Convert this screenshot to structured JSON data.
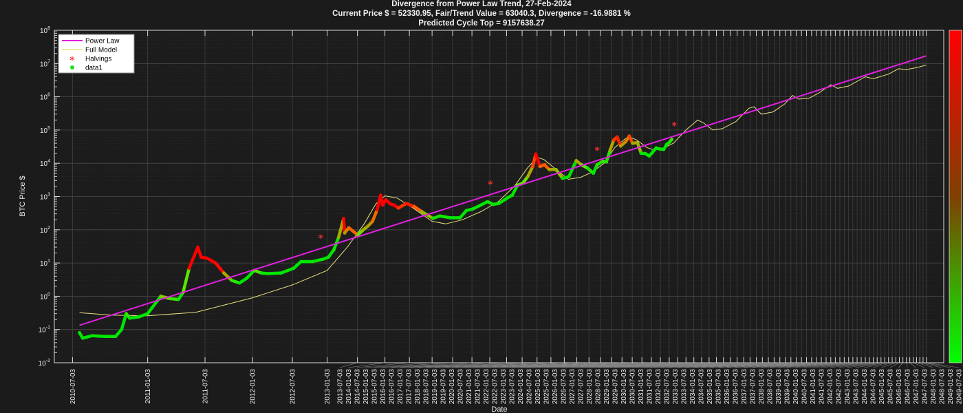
{
  "chart_data": {
    "type": "scatter",
    "title": "Divergence from Power Law Trend, 27-Feb-2024",
    "subtitle": "Current Price $ = 52330.95, Fair/Trend Value = 63040.3, Divergence = -16.9881 %",
    "subtitle2": "Predicted Cycle Top = 9157638.27",
    "xlabel": "Date",
    "ylabel": "BTC Price $",
    "x_scale": "log (days since 2009-01-03)",
    "y_scale": "log",
    "ylim": [
      0.01,
      100000000
    ],
    "xlim": [
      "2010-05-27",
      "2052-05-01"
    ],
    "grid": true,
    "legend_position": "top-left",
    "colorbar": {
      "top_color": "#ff0000",
      "bottom_color": "#00ff00"
    },
    "y_ticks": [
      {
        "base": "10",
        "exp": "-2"
      },
      {
        "base": "10",
        "exp": "-1"
      },
      {
        "base": "10",
        "exp": "0"
      },
      {
        "base": "10",
        "exp": "1"
      },
      {
        "base": "10",
        "exp": "2"
      },
      {
        "base": "10",
        "exp": "3"
      },
      {
        "base": "10",
        "exp": "4"
      },
      {
        "base": "10",
        "exp": "5"
      },
      {
        "base": "10",
        "exp": "6"
      },
      {
        "base": "10",
        "exp": "7"
      },
      {
        "base": "10",
        "exp": "8"
      }
    ],
    "x_ticks": [
      "2010-07-03",
      "2011-01-03",
      "2011-07-03",
      "2012-01-03",
      "2012-07-03",
      "2013-01-03",
      "2013-07-03",
      "2014-01-03",
      "2014-07-03",
      "2015-01-03",
      "2015-07-03",
      "2016-01-03",
      "2016-07-03",
      "2017-01-03",
      "2017-07-03",
      "2018-01-03",
      "2018-07-03",
      "2019-01-03",
      "2019-07-03",
      "2020-01-03",
      "2020-07-03",
      "2021-01-03",
      "2021-07-03",
      "2022-01-03",
      "2022-07-03",
      "2023-01-03",
      "2023-07-03",
      "2024-01-03",
      "2024-07-03",
      "2025-01-03",
      "2025-07-03",
      "2026-01-03",
      "2026-07-03",
      "2027-01-03",
      "2027-07-03",
      "2028-01-03",
      "2028-07-03",
      "2029-01-03",
      "2029-07-03",
      "2030-01-03",
      "2030-07-03",
      "2031-01-03",
      "2031-07-03",
      "2032-01-03",
      "2032-07-03",
      "2033-01-03",
      "2033-07-03",
      "2034-01-03",
      "2034-07-03",
      "2035-01-03",
      "2035-07-03",
      "2036-01-03",
      "2036-07-03",
      "2037-01-03",
      "2037-07-03",
      "2038-01-03",
      "2038-07-03",
      "2039-01-03",
      "2039-07-03",
      "2040-01-03",
      "2040-07-03",
      "2041-01-03",
      "2041-07-03",
      "2042-01-03",
      "2042-07-03",
      "2043-01-03",
      "2043-07-03",
      "2044-01-03",
      "2044-07-03",
      "2045-01-03",
      "2045-07-03",
      "2046-01-03",
      "2046-07-03",
      "2047-01-03",
      "2047-07-03",
      "2048-01-03",
      "2048-07-03",
      "2049-01-03",
      "2049-07-03"
    ],
    "legend": [
      {
        "label": "Power Law",
        "color": "#e020e0",
        "marker": "line"
      },
      {
        "label": "Full Model",
        "color": "#e8e080",
        "marker": "line"
      },
      {
        "label": "Halvings",
        "color": "#ff3030",
        "marker": "asterisk"
      },
      {
        "label": "data1",
        "color": "#20e020",
        "marker": "dot"
      }
    ],
    "series": [
      {
        "name": "Power Law",
        "type": "line",
        "color": "#e020e0",
        "points": [
          [
            "2010-07-18",
            0.134
          ],
          [
            "2049-07-03",
            17000000
          ]
        ]
      },
      {
        "name": "Full Model",
        "type": "line",
        "color": "#e8e080",
        "points": [
          [
            "2010-07-18",
            0.32
          ],
          [
            "2010-10-01",
            0.27
          ],
          [
            "2011-01-03",
            0.26
          ],
          [
            "2011-06-01",
            0.33
          ],
          [
            "2012-01-03",
            0.9
          ],
          [
            "2012-07-03",
            2.2
          ],
          [
            "2013-01-03",
            6
          ],
          [
            "2013-05-01",
            30
          ],
          [
            "2013-08-15",
            150
          ],
          [
            "2013-11-01",
            600
          ],
          [
            "2014-01-03",
            1050
          ],
          [
            "2014-04-01",
            900
          ],
          [
            "2014-08-01",
            450
          ],
          [
            "2015-01-03",
            180
          ],
          [
            "2015-05-01",
            150
          ],
          [
            "2015-10-01",
            200
          ],
          [
            "2016-04-01",
            350
          ],
          [
            "2016-10-01",
            700
          ],
          [
            "2017-04-01",
            2000
          ],
          [
            "2017-09-01",
            7000
          ],
          [
            "2018-01-03",
            15000
          ],
          [
            "2018-04-01",
            13000
          ],
          [
            "2018-10-01",
            6000
          ],
          [
            "2019-03-01",
            3300
          ],
          [
            "2019-09-01",
            3800
          ],
          [
            "2020-03-01",
            5500
          ],
          [
            "2020-09-01",
            10000
          ],
          [
            "2021-03-01",
            30000
          ],
          [
            "2021-09-01",
            55000
          ],
          [
            "2021-12-01",
            60000
          ],
          [
            "2022-04-01",
            50000
          ],
          [
            "2022-10-01",
            30000
          ],
          [
            "2023-03-01",
            25000
          ],
          [
            "2023-10-01",
            30000
          ],
          [
            "2024-04-01",
            40000
          ],
          [
            "2025-01-03",
            100000
          ],
          [
            "2025-10-01",
            200000
          ],
          [
            "2026-03-01",
            160000
          ],
          [
            "2026-10-01",
            100000
          ],
          [
            "2027-06-01",
            110000
          ],
          [
            "2028-06-01",
            180000
          ],
          [
            "2029-06-01",
            450000
          ],
          [
            "2029-11-01",
            500000
          ],
          [
            "2030-06-01",
            300000
          ],
          [
            "2031-06-01",
            350000
          ],
          [
            "2032-06-01",
            600000
          ],
          [
            "2033-03-01",
            1100000
          ],
          [
            "2033-10-01",
            850000
          ],
          [
            "2034-10-01",
            900000
          ],
          [
            "2035-10-01",
            1300000
          ],
          [
            "2037-01-03",
            2300000
          ],
          [
            "2037-10-01",
            1800000
          ],
          [
            "2039-01-03",
            2100000
          ],
          [
            "2041-01-03",
            4000000
          ],
          [
            "2042-01-03",
            3500000
          ],
          [
            "2044-01-03",
            4800000
          ],
          [
            "2045-06-01",
            7000000
          ],
          [
            "2046-06-01",
            6500000
          ],
          [
            "2048-01-03",
            7500000
          ],
          [
            "2049-07-03",
            9000000
          ]
        ]
      },
      {
        "name": "Halvings",
        "type": "scatter",
        "color": "#ff3030",
        "points": [
          [
            "2012-11-28",
            62
          ],
          [
            "2016-07-09",
            2600
          ],
          [
            "2020-05-11",
            27000
          ],
          [
            "2024-04-20",
            150000
          ]
        ]
      },
      {
        "name": "data1",
        "type": "scatter",
        "color_by": "divergence",
        "points": [
          [
            "2010-07-18",
            0.08
          ],
          [
            "2010-07-25",
            0.055
          ],
          [
            "2010-08-15",
            0.065
          ],
          [
            "2010-09-15",
            0.062
          ],
          [
            "2010-10-10",
            0.062
          ],
          [
            "2010-10-25",
            0.1
          ],
          [
            "2010-11-06",
            0.3
          ],
          [
            "2010-11-15",
            0.22
          ],
          [
            "2010-12-10",
            0.24
          ],
          [
            "2011-01-03",
            0.3
          ],
          [
            "2011-02-10",
            1.0
          ],
          [
            "2011-03-10",
            0.85
          ],
          [
            "2011-04-05",
            0.8
          ],
          [
            "2011-04-20",
            1.3
          ],
          [
            "2011-05-10",
            7
          ],
          [
            "2011-06-08",
            30
          ],
          [
            "2011-06-20",
            15
          ],
          [
            "2011-07-10",
            14
          ],
          [
            "2011-08-10",
            10
          ],
          [
            "2011-09-10",
            5
          ],
          [
            "2011-10-10",
            3
          ],
          [
            "2011-11-10",
            2.5
          ],
          [
            "2011-12-10",
            3.5
          ],
          [
            "2012-01-10",
            6
          ],
          [
            "2012-02-10",
            5
          ],
          [
            "2012-03-10",
            4.8
          ],
          [
            "2012-05-10",
            5
          ],
          [
            "2012-07-10",
            7
          ],
          [
            "2012-08-15",
            11
          ],
          [
            "2012-09-15",
            11
          ],
          [
            "2012-10-15",
            11
          ],
          [
            "2012-12-10",
            13
          ],
          [
            "2013-01-10",
            15
          ],
          [
            "2013-02-10",
            25
          ],
          [
            "2013-03-10",
            60
          ],
          [
            "2013-04-09",
            220
          ],
          [
            "2013-04-15",
            80
          ],
          [
            "2013-05-10",
            115
          ],
          [
            "2013-07-05",
            70
          ],
          [
            "2013-08-10",
            100
          ],
          [
            "2013-09-10",
            130
          ],
          [
            "2013-10-10",
            180
          ],
          [
            "2013-11-10",
            400
          ],
          [
            "2013-12-04",
            1100
          ],
          [
            "2013-12-18",
            550
          ],
          [
            "2014-01-10",
            800
          ],
          [
            "2014-02-10",
            600
          ],
          [
            "2014-03-10",
            550
          ],
          [
            "2014-04-10",
            450
          ],
          [
            "2014-06-10",
            620
          ],
          [
            "2014-08-10",
            500
          ],
          [
            "2014-10-10",
            350
          ],
          [
            "2015-01-10",
            220
          ],
          [
            "2015-03-10",
            260
          ],
          [
            "2015-06-10",
            230
          ],
          [
            "2015-09-10",
            230
          ],
          [
            "2015-11-10",
            380
          ],
          [
            "2016-01-10",
            420
          ],
          [
            "2016-06-10",
            700
          ],
          [
            "2016-08-10",
            580
          ],
          [
            "2016-10-10",
            620
          ],
          [
            "2017-01-10",
            900
          ],
          [
            "2017-03-10",
            1100
          ],
          [
            "2017-05-10",
            2200
          ],
          [
            "2017-07-10",
            2500
          ],
          [
            "2017-09-10",
            4000
          ],
          [
            "2017-11-10",
            8000
          ],
          [
            "2017-12-17",
            19000
          ],
          [
            "2018-02-10",
            8000
          ],
          [
            "2018-04-10",
            9000
          ],
          [
            "2018-06-10",
            6500
          ],
          [
            "2018-09-10",
            6500
          ],
          [
            "2018-12-10",
            3500
          ],
          [
            "2019-03-10",
            4000
          ],
          [
            "2019-06-25",
            12000
          ],
          [
            "2019-09-10",
            9000
          ],
          [
            "2019-12-10",
            7200
          ],
          [
            "2020-03-12",
            5000
          ],
          [
            "2020-05-10",
            9000
          ],
          [
            "2020-08-10",
            11500
          ],
          [
            "2020-10-10",
            11000
          ],
          [
            "2020-12-10",
            25000
          ],
          [
            "2021-02-10",
            50000
          ],
          [
            "2021-04-10",
            62000
          ],
          [
            "2021-06-10",
            33000
          ],
          [
            "2021-09-10",
            45000
          ],
          [
            "2021-11-10",
            66000
          ],
          [
            "2022-01-10",
            40000
          ],
          [
            "2022-04-10",
            42000
          ],
          [
            "2022-06-18",
            20000
          ],
          [
            "2022-09-10",
            19500
          ],
          [
            "2022-11-20",
            16500
          ],
          [
            "2023-01-10",
            20000
          ],
          [
            "2023-04-10",
            29000
          ],
          [
            "2023-06-10",
            27000
          ],
          [
            "2023-09-10",
            26000
          ],
          [
            "2023-11-10",
            37000
          ],
          [
            "2024-01-10",
            43000
          ],
          [
            "2024-02-27",
            52330.95
          ]
        ]
      }
    ]
  }
}
